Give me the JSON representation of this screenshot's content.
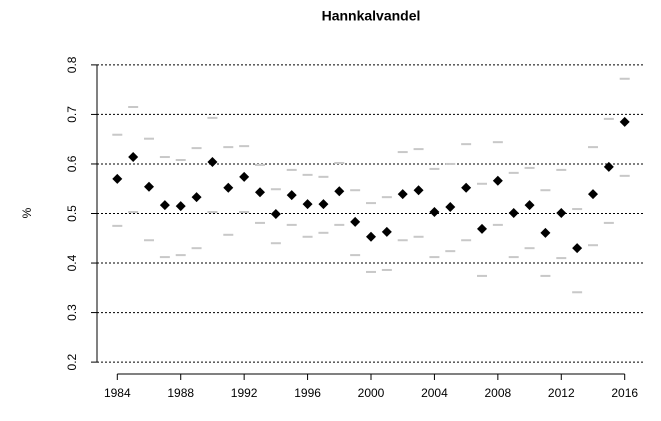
{
  "chart_data": {
    "type": "scatter",
    "title": "Hannkalvandel",
    "ylabel": "%",
    "x": [
      1984,
      1985,
      1986,
      1987,
      1988,
      1989,
      1990,
      1991,
      1992,
      1993,
      1994,
      1995,
      1996,
      1997,
      1998,
      1999,
      2000,
      2001,
      2002,
      2003,
      2004,
      2005,
      2006,
      2007,
      2008,
      2009,
      2010,
      2011,
      2012,
      2013,
      2014,
      2015,
      2016
    ],
    "series": [
      {
        "color": "#000000",
        "marker": "diamond",
        "values": [
          0.57,
          0.614,
          0.554,
          0.517,
          0.515,
          0.533,
          0.604,
          0.552,
          0.574,
          0.543,
          0.499,
          0.537,
          0.519,
          0.519,
          0.545,
          0.483,
          0.453,
          0.463,
          0.539,
          0.547,
          0.503,
          0.513,
          0.552,
          0.469,
          0.566,
          0.501,
          0.517,
          0.461,
          0.501,
          0.43,
          0.539,
          0.594,
          0.685
        ]
      },
      {
        "color": "#c8c8c8",
        "marker": "dash",
        "values": [
          0.659,
          0.715,
          0.651,
          0.614,
          0.608,
          0.632,
          0.693,
          0.634,
          0.636,
          0.598,
          0.549,
          0.588,
          0.578,
          0.574,
          0.602,
          0.547,
          0.521,
          0.533,
          0.624,
          0.63,
          0.59,
          0.6,
          0.64,
          0.56,
          0.644,
          0.582,
          0.592,
          0.547,
          0.588,
          0.509,
          0.634,
          0.691,
          0.772
        ]
      },
      {
        "color": "#c8c8c8",
        "marker": "dash",
        "values": [
          0.475,
          0.503,
          0.446,
          0.412,
          0.416,
          0.43,
          0.503,
          0.457,
          0.503,
          0.481,
          0.44,
          0.477,
          0.453,
          0.461,
          0.477,
          0.416,
          0.382,
          0.386,
          0.446,
          0.453,
          0.412,
          0.424,
          0.446,
          0.374,
          0.477,
          0.412,
          0.43,
          0.374,
          0.41,
          0.341,
          0.436,
          0.481,
          0.576
        ]
      }
    ],
    "xlim": [
      1982.72,
      2017.28
    ],
    "xticks": [
      1984,
      1988,
      1992,
      1996,
      2000,
      2004,
      2008,
      2012,
      2016
    ],
    "ylim": [
      0.176,
      0.824
    ],
    "yticks": [
      0.2,
      0.3,
      0.4,
      0.5,
      0.6,
      0.7,
      0.8
    ],
    "grid": true
  }
}
